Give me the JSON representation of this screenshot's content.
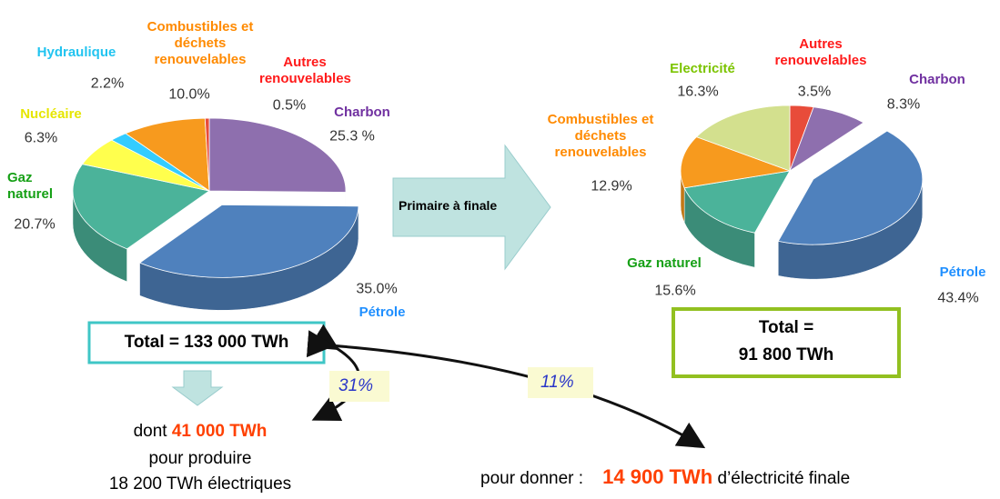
{
  "chart_data": [
    {
      "type": "pie",
      "categories": [
        "Charbon",
        "Pétrole",
        "Gaz naturel",
        "Nucléaire",
        "Hydraulique",
        "Combustibles et déchets renouvelables",
        "Autres renouvelables"
      ],
      "values": [
        25.3,
        35.0,
        20.7,
        6.3,
        2.2,
        10.0,
        0.5
      ],
      "value_labels": [
        "25.3 %",
        "35.0%",
        "20.7%",
        "6.3%",
        "2.2%",
        "10.0%",
        "0.5%"
      ],
      "colors": [
        "#8e6fae",
        "#4f81bd",
        "#4bb39a",
        "#ffff4d",
        "#33ccff",
        "#f79a1e",
        "#e84c3a"
      ],
      "label_colors": [
        "#7030a0",
        "#1f8fff",
        "#16a016",
        "#e6e600",
        "#22c4f0",
        "#ff8a00",
        "#ff1a1a"
      ]
    },
    {
      "type": "pie",
      "categories": [
        "Autres renouvelables",
        "Charbon",
        "Pétrole",
        "Gaz naturel",
        "Combustibles et déchets renouvelables",
        "Electricité"
      ],
      "values": [
        3.5,
        8.3,
        43.4,
        15.6,
        12.9,
        16.3
      ],
      "value_labels": [
        "3.5%",
        "8.3%",
        "43.4%",
        "15.6%",
        "12.9%",
        "16.3%"
      ],
      "colors": [
        "#e84c3a",
        "#8e6fae",
        "#4f81bd",
        "#4bb39a",
        "#f79a1e",
        "#d3e08e"
      ],
      "label_colors": [
        "#ff1a1a",
        "#7030a0",
        "#1f8fff",
        "#16a016",
        "#ff8a00",
        "#7cc400"
      ]
    }
  ],
  "arrow_label": "Primaire à finale",
  "total_primary": "Total = 133 000 TWh",
  "total_final": [
    "Total =",
    "91 800 TWh"
  ],
  "electricity_input": {
    "prefix": "dont",
    "amount": "41 000 TWh",
    "line2": "pour produire",
    "line3": "18 200 TWh électriques"
  },
  "conversion_ratios": [
    "31%",
    "11%"
  ],
  "final_electricity": {
    "prefix": "pour donner :",
    "amount": "14 900 TWh",
    "suffix": "d’électricité finale"
  }
}
